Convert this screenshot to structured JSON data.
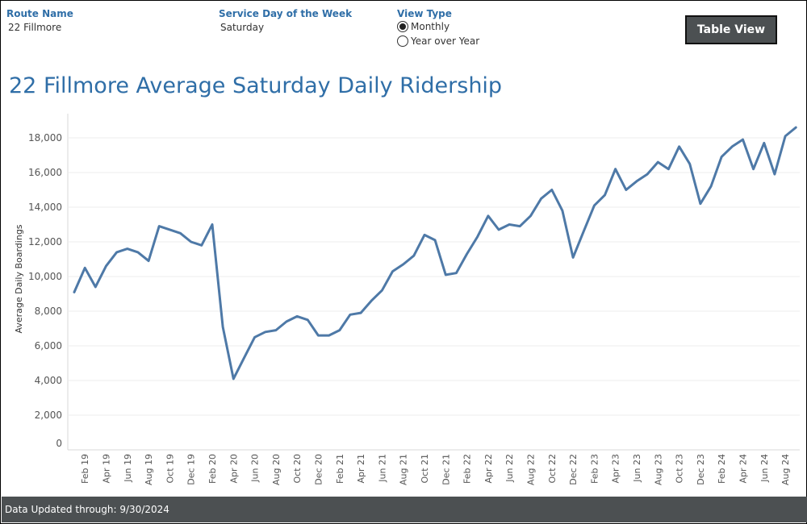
{
  "filters": {
    "route": {
      "label": "Route Name",
      "value": "22 Fillmore"
    },
    "service_day": {
      "label": "Service Day of the Week",
      "value": "Saturday"
    },
    "view_type": {
      "label": "View Type",
      "options": [
        "Monthly",
        "Year over Year"
      ],
      "selected": "Monthly"
    }
  },
  "table_view_button": "Table View",
  "title": "22 Fillmore Average Saturday Daily Ridership",
  "footer": "Data Updated through: 9/30/2024",
  "colors": {
    "accent": "#2f6ea7",
    "line": "#4e79a7",
    "footer_bg": "#4c5052",
    "button_bg": "#4c5052"
  },
  "chart_data": {
    "type": "line",
    "title": "22 Fillmore Average Saturday Daily Ridership",
    "xlabel": "",
    "ylabel": "Average Daily Boardings",
    "ylim": [
      0,
      19000
    ],
    "yticks": [
      0,
      2000,
      4000,
      6000,
      8000,
      10000,
      12000,
      14000,
      16000,
      18000
    ],
    "ytick_labels": [
      "0",
      "2,000",
      "4,000",
      "6,000",
      "8,000",
      "10,000",
      "12,000",
      "14,000",
      "16,000",
      "18,000"
    ],
    "grid": true,
    "x_tick_labels": [
      "Feb 19",
      "Apr 19",
      "Jun 19",
      "Aug 19",
      "Oct 19",
      "Dec 19",
      "Feb 20",
      "Apr 20",
      "Jun 20",
      "Aug 20",
      "Oct 20",
      "Dec 20",
      "Feb 21",
      "Apr 21",
      "Jun 21",
      "Aug 21",
      "Oct 21",
      "Dec 21",
      "Feb 22",
      "Apr 22",
      "Jun 22",
      "Aug 22",
      "Oct 22",
      "Dec 22",
      "Feb 23",
      "Apr 23",
      "Jun 23",
      "Aug 23",
      "Oct 23",
      "Dec 23",
      "Feb 24",
      "Apr 24",
      "Jun 24",
      "Aug 24"
    ],
    "x": [
      "Jan 19",
      "Feb 19",
      "Mar 19",
      "Apr 19",
      "May 19",
      "Jun 19",
      "Jul 19",
      "Aug 19",
      "Sep 19",
      "Oct 19",
      "Nov 19",
      "Dec 19",
      "Jan 20",
      "Feb 20",
      "Mar 20",
      "Apr 20",
      "May 20",
      "Jun 20",
      "Jul 20",
      "Aug 20",
      "Sep 20",
      "Oct 20",
      "Nov 20",
      "Dec 20",
      "Jan 21",
      "Feb 21",
      "Mar 21",
      "Apr 21",
      "May 21",
      "Jun 21",
      "Jul 21",
      "Aug 21",
      "Sep 21",
      "Oct 21",
      "Nov 21",
      "Dec 21",
      "Jan 22",
      "Feb 22",
      "Mar 22",
      "Apr 22",
      "May 22",
      "Jun 22",
      "Jul 22",
      "Aug 22",
      "Sep 22",
      "Oct 22",
      "Nov 22",
      "Dec 22",
      "Jan 23",
      "Feb 23",
      "Mar 23",
      "Apr 23",
      "May 23",
      "Jun 23",
      "Jul 23",
      "Aug 23",
      "Sep 23",
      "Oct 23",
      "Nov 23",
      "Dec 23",
      "Jan 24",
      "Feb 24",
      "Mar 24",
      "Apr 24",
      "May 24",
      "Jun 24",
      "Jul 24",
      "Aug 24",
      "Sep 24"
    ],
    "series": [
      {
        "values": [
          9100,
          10500,
          9400,
          10600,
          11400,
          11600,
          11400,
          10900,
          12900,
          12700,
          12500,
          12000,
          11800,
          13000,
          7100,
          4100,
          5300,
          6500,
          6800,
          6900,
          7400,
          7700,
          7500,
          6600,
          6600,
          6900,
          7800,
          7900,
          8600,
          9200,
          10300,
          10700,
          11200,
          12400,
          12100,
          10100,
          10200,
          11300,
          12300,
          13500,
          12700,
          13000,
          12900,
          13500,
          14500,
          15000,
          13800,
          11100,
          12600,
          14100,
          14700,
          16200,
          15000,
          15500,
          15900,
          16600,
          16200,
          17500,
          16500,
          14200,
          15200,
          16900,
          17500,
          17900,
          16200,
          17700,
          15900,
          18100,
          18600
        ]
      }
    ]
  }
}
